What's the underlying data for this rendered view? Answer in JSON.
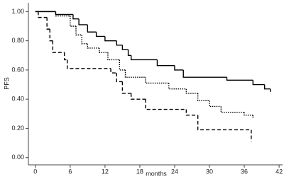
{
  "chart_data": {
    "type": "step",
    "x_label": "months",
    "y_label": "PFS",
    "xlim": [
      -1.2,
      42.6
    ],
    "ylim": [
      -0.05,
      1.06
    ],
    "xticks": [
      0,
      6,
      12,
      18,
      24,
      30,
      36,
      42
    ],
    "yticks": [
      {
        "value": 0,
        "label": "0.00"
      },
      {
        "value": 0.2,
        "label": "0.20"
      },
      {
        "value": 0.4,
        "label": "0.40"
      },
      {
        "value": 0.6,
        "label": "0.60"
      },
      {
        "value": 0.8,
        "label": "0.80"
      },
      {
        "value": 1,
        "label": "1.00"
      }
    ],
    "series": [
      {
        "color": "#000000",
        "dash": "none",
        "x": [
          0,
          3.5,
          6.5,
          7.5,
          9,
          10.5,
          12,
          14,
          15,
          16,
          16.5,
          21,
          24,
          25.5,
          33,
          37.5,
          39.5,
          40.5
        ],
        "values": [
          1.0,
          0.98,
          0.95,
          0.91,
          0.86,
          0.83,
          0.8,
          0.77,
          0.74,
          0.7,
          0.67,
          0.63,
          0.6,
          0.55,
          0.53,
          0.5,
          0.47,
          0.45
        ]
      },
      {
        "color": "#000000",
        "dash": "1.5 1.5",
        "x": [
          0,
          3.5,
          6,
          7,
          8,
          9,
          11,
          12.5,
          14.5,
          15.5,
          19,
          23,
          26,
          28,
          30,
          32,
          36,
          37.5
        ],
        "values": [
          1.0,
          0.97,
          0.9,
          0.84,
          0.78,
          0.75,
          0.72,
          0.67,
          0.6,
          0.55,
          0.51,
          0.47,
          0.44,
          0.39,
          0.35,
          0.31,
          0.29,
          0.27
        ]
      },
      {
        "color": "#000000",
        "dash": "5 3",
        "x": [
          0,
          0.5,
          2,
          2.5,
          3,
          5,
          5.5,
          13,
          14,
          15,
          16.5,
          19,
          26,
          28,
          37.2
        ],
        "values": [
          1.0,
          0.96,
          0.88,
          0.8,
          0.72,
          0.67,
          0.61,
          0.58,
          0.52,
          0.44,
          0.4,
          0.33,
          0.29,
          0.19,
          0.11
        ]
      }
    ]
  }
}
